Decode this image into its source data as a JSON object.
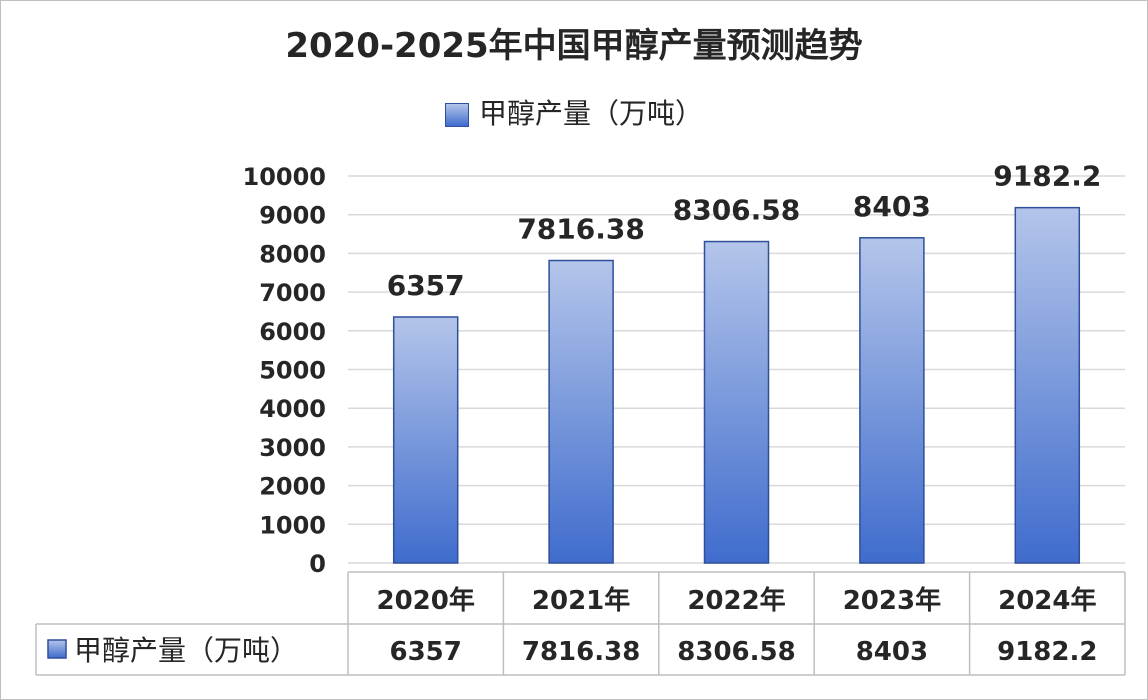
{
  "chart_data": {
    "type": "bar",
    "title": "2020-2025年中国甲醇产量预测趋势",
    "categories": [
      "2020年",
      "2021年",
      "2022年",
      "2023年",
      "2024年"
    ],
    "series": [
      {
        "name": "甲醇产量（万吨）",
        "values": [
          6357,
          7816.38,
          8306.58,
          8403,
          9182.2
        ]
      }
    ],
    "data_labels": [
      "6357",
      "7816.38",
      "8306.58",
      "8403",
      "9182.2"
    ],
    "ylim": [
      0,
      10000
    ],
    "yticks": [
      "0",
      "1000",
      "2000",
      "3000",
      "4000",
      "5000",
      "6000",
      "7000",
      "8000",
      "9000",
      "10000"
    ],
    "grid": true,
    "legend_position": "top",
    "data_table": true,
    "colors": {
      "bar_top": "#b4c5ea",
      "bar_bottom": "#3f6ccd",
      "bar_border": "#2f4f9a",
      "grid": "#d9d9d9"
    }
  }
}
